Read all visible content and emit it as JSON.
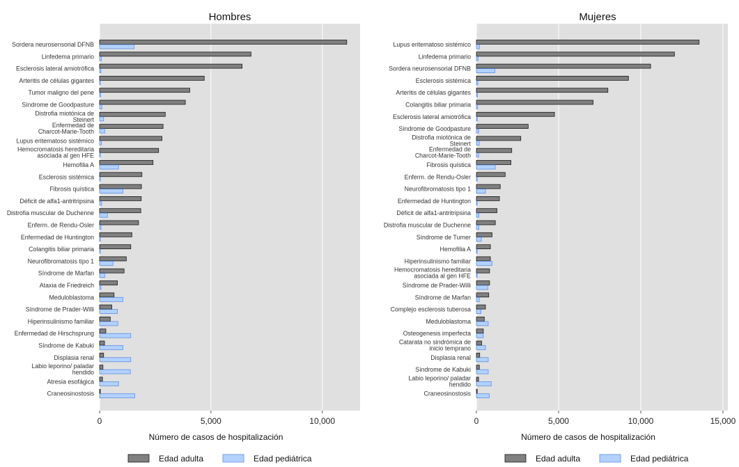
{
  "colors": {
    "adult": "#808080",
    "adult_border": "#1a1a1a",
    "pediatric": "#b3d1ff",
    "pediatric_border": "#5e8fe0",
    "panel_bg": "#e0e0e0"
  },
  "chart_data": [
    {
      "type": "bar",
      "orientation": "horizontal",
      "title": "Hombres",
      "xlabel": "Número de casos de hospitalización",
      "xlim": [
        0,
        11700
      ],
      "xticks": [
        0,
        5000,
        10000
      ],
      "xtick_labels": [
        "0",
        "5,000",
        "10,000"
      ],
      "legend_position": "bottom",
      "categories": [
        "Sordera neurosensorial DFNB",
        "Linfedema primario",
        "Esclerosis lateral amiotrófica",
        "Arteritis de células gigantes",
        "Tumor maligno del pene",
        "Síndrome de Goodpasture",
        "Distrofia miotónica de Steinert",
        "Enfermedad de Charcot-Marie-Tooth",
        "Lupus eritematoso sistémico",
        "Hemocromatosis hereditaria asociada al gen HFE",
        "Hemofilia A",
        "Esclerosis sistémica",
        "Fibrosis quística",
        "Déficit de alfa1-antritripsina",
        "Distrofia muscular de Duchenne",
        "Enferm. de Rendu-Osler",
        "Enfermedad de Huntington",
        "Colangitis biliar primaria",
        "Neurofibromatosis tipo 1",
        "Síndrome de Marfan",
        "Ataxia de Friedreich",
        "Meduloblastoma",
        "Síndrome de Prader-Willi",
        "Hiperinsulinismo familiar",
        "Enfermedad de Hirschsprung",
        "Síndrome de Kabuki",
        "Displasia renal",
        "Labio leporino/ paladar hendido",
        "Atresia esofágica",
        "Craneosinostosis"
      ],
      "category_lines": [
        [
          "Sordera neurosensorial DFNB"
        ],
        [
          "Linfedema primario"
        ],
        [
          "Esclerosis lateral amiotrófica"
        ],
        [
          "Arteritis de células gigantes"
        ],
        [
          "Tumor maligno del pene"
        ],
        [
          "Síndrome de Goodpasture"
        ],
        [
          "Distrofia miotónica de",
          "Steinert"
        ],
        [
          "Enfermedad de",
          "Charcot-Marie-Tooth"
        ],
        [
          "Lupus eritematoso sistémico"
        ],
        [
          "Hemocromatosis hereditaria",
          "asociada al gen HFE"
        ],
        [
          "Hemofilia A"
        ],
        [
          "Esclerosis sistémica"
        ],
        [
          "Fibrosis quística"
        ],
        [
          "Déficit de alfa1-antritripsina"
        ],
        [
          "Distrofia muscular de Duchenne"
        ],
        [
          "Enferm. de Rendu-Osler"
        ],
        [
          "Enfermedad de Huntington"
        ],
        [
          "Colangitis biliar primaria"
        ],
        [
          "Neurofibromatosis tipo 1"
        ],
        [
          "Síndrome de Marfan"
        ],
        [
          "Ataxia de Friedreich"
        ],
        [
          "Meduloblastoma"
        ],
        [
          "Síndrome de Prader-Willi"
        ],
        [
          "Hiperinsulinismo familiar"
        ],
        [
          "Enfermedad de Hirschsprung"
        ],
        [
          "Síndrome de Kabuki"
        ],
        [
          "Displasia renal"
        ],
        [
          "Labio leporino/ paladar",
          "hendido"
        ],
        [
          "Atresia esofágica"
        ],
        [
          "Craneosinostosis"
        ]
      ],
      "series": [
        {
          "name": "Edad adulta",
          "values": [
            11100,
            6800,
            6400,
            4700,
            4050,
            3850,
            2950,
            2850,
            2800,
            2650,
            2400,
            1900,
            1880,
            1870,
            1850,
            1750,
            1450,
            1400,
            1200,
            1100,
            800,
            650,
            550,
            480,
            280,
            220,
            180,
            150,
            130,
            20
          ]
        },
        {
          "name": "Edad pediátrica",
          "values": [
            1550,
            80,
            60,
            30,
            50,
            100,
            180,
            230,
            80,
            20,
            850,
            30,
            1050,
            90,
            350,
            60,
            30,
            20,
            600,
            230,
            60,
            1050,
            800,
            820,
            1400,
            1050,
            1400,
            1380,
            850,
            1580
          ]
        }
      ]
    },
    {
      "type": "bar",
      "orientation": "horizontal",
      "title": "Mujeres",
      "xlabel": "Número de casos de hospitalización",
      "xlim": [
        0,
        15300
      ],
      "xticks": [
        0,
        5000,
        10000,
        15000
      ],
      "xtick_labels": [
        "0",
        "5,000",
        "10,000",
        "15,000"
      ],
      "legend_position": "bottom",
      "categories": [
        "Lupus eritematoso sistémico",
        "Linfedema primario",
        "Sordera neurosensorial DFNB",
        "Esclerosis sistémica",
        "Arteritis de células gigantes",
        "Colangitis biliar primaria",
        "Esclerosis lateral amiotrófica",
        "Síndrome de Goodpasture",
        "Distrofia miotónica de Steinert",
        "Enfermedad de Charcot-Marie-Tooth",
        "Fibrosis quística",
        "Enferm. de Rendu-Osler",
        "Neurofibromatosis tipo 1",
        "Enfermedad de Huntington",
        "Déficit de alfa1-antritripsina",
        "Distrofia muscular de Duchenne",
        "Síndrome de Turner",
        "Hemofilia A",
        "Hiperinsulinismo familiar",
        "Hemocromatosis hereditaria asociada al gen HFE",
        "Síndrome de Prader-Willi",
        "Síndrome de Marfan",
        "Complejo esclerosis tuberosa",
        "Meduloblastoma",
        "Osteogenesis imperfecta",
        "Catarata no sindrómica de inicio temprano",
        "Displasia renal",
        "Síndrome de Kabuki",
        "Labio leporino/ paladar hendido",
        "Craneosinostosis"
      ],
      "category_lines": [
        [
          "Lupus eritematoso sistémico"
        ],
        [
          "Linfedema primario"
        ],
        [
          "Sordera neurosensorial DFNB"
        ],
        [
          "Esclerosis sistémica"
        ],
        [
          "Arteritis de células gigantes"
        ],
        [
          "Colangitis biliar primaria"
        ],
        [
          "Esclerosis lateral amiotrófica"
        ],
        [
          "Síndrome de Goodpasture"
        ],
        [
          "Distrofia miotónica de",
          "Steinert"
        ],
        [
          "Enfermedad de",
          "Charcot-Marie-Tooth"
        ],
        [
          "Fibrosis quística"
        ],
        [
          "Enferm. de Rendu-Osler"
        ],
        [
          "Neurofibromatosis tipo 1"
        ],
        [
          "Enfermedad de Huntington"
        ],
        [
          "Déficit de alfa1-antritripsina"
        ],
        [
          "Distrofia muscular de Duchenne"
        ],
        [
          "Síndrome de Turner"
        ],
        [
          "Hemofilia A"
        ],
        [
          "Hiperinsulinismo familiar"
        ],
        [
          "Hemocromatosis hereditaria",
          "asociada al gen HFE"
        ],
        [
          "Síndrome de Prader-Willi"
        ],
        [
          "Síndrome de Marfan"
        ],
        [
          "Complejo esclerosis tuberosa"
        ],
        [
          "Meduloblastoma"
        ],
        [
          "Osteogenesis imperfecta"
        ],
        [
          "Catarata no sindrómica de",
          "inicio temprano"
        ],
        [
          "Displasia renal"
        ],
        [
          "Síndrome de Kabuki"
        ],
        [
          "Labio leporino/ paladar",
          "hendido"
        ],
        [
          "Craneosinostosis"
        ]
      ],
      "series": [
        {
          "name": "Edad adulta",
          "values": [
            13550,
            12050,
            10600,
            9250,
            8000,
            7100,
            4750,
            3150,
            2700,
            2150,
            2100,
            1750,
            1450,
            1400,
            1250,
            1150,
            950,
            850,
            850,
            800,
            800,
            750,
            550,
            480,
            420,
            320,
            200,
            180,
            130,
            50
          ]
        },
        {
          "name": "Edad pediátrica",
          "values": [
            180,
            100,
            1120,
            90,
            70,
            70,
            50,
            130,
            170,
            130,
            1150,
            50,
            550,
            20,
            150,
            150,
            300,
            40,
            950,
            40,
            700,
            180,
            280,
            720,
            420,
            550,
            720,
            720,
            900,
            780
          ]
        }
      ]
    }
  ]
}
